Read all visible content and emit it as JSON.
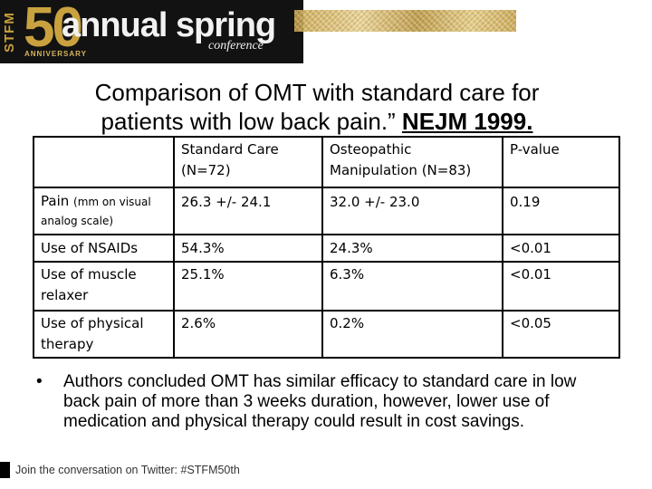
{
  "banner": {
    "stfm": "STFM",
    "fifty": "50",
    "anniversary": "ANNIVERSARY",
    "annual": "annual spring",
    "conference": "conference"
  },
  "title": {
    "line1": "Comparison of OMT with standard care for",
    "line2_prefix": "patients with low back pain.” ",
    "citation": "NEJM 1999."
  },
  "table": {
    "headers": [
      "",
      "Standard Care (N=72)",
      "Osteopathic Manipulation (N=83)",
      "P-value"
    ],
    "header_lines": {
      "col1": [
        "Standard Care",
        "(N=72)"
      ],
      "col2": [
        "Osteopathic",
        "Manipulation (N=83)"
      ],
      "col3": [
        "P-value"
      ]
    },
    "rows": [
      {
        "label": "Pain",
        "label_note": "(mm on visual analog scale)",
        "standard": "26.3 +/- 24.1",
        "omt": "32.0 +/- 23.0",
        "p": "0.19"
      },
      {
        "label": "Use of NSAIDs",
        "label_note": "",
        "standard": "54.3%",
        "omt": "24.3%",
        "p": "<0.01"
      },
      {
        "label": "Use of muscle relaxer",
        "label_note": "",
        "standard": "25.1%",
        "omt": "6.3%",
        "p": "<0.01"
      },
      {
        "label": "Use of physical therapy",
        "label_note": "",
        "standard": "2.6%",
        "omt": "0.2%",
        "p": "<0.05"
      }
    ]
  },
  "bullet": {
    "marker": "•",
    "text": "Authors concluded OMT has similar efficacy to standard care in low back pain of more than 3 weeks duration, however, lower use of medication and physical therapy could result in cost savings."
  },
  "footer": {
    "text": "Join the conversation on Twitter: #STFM50th"
  }
}
